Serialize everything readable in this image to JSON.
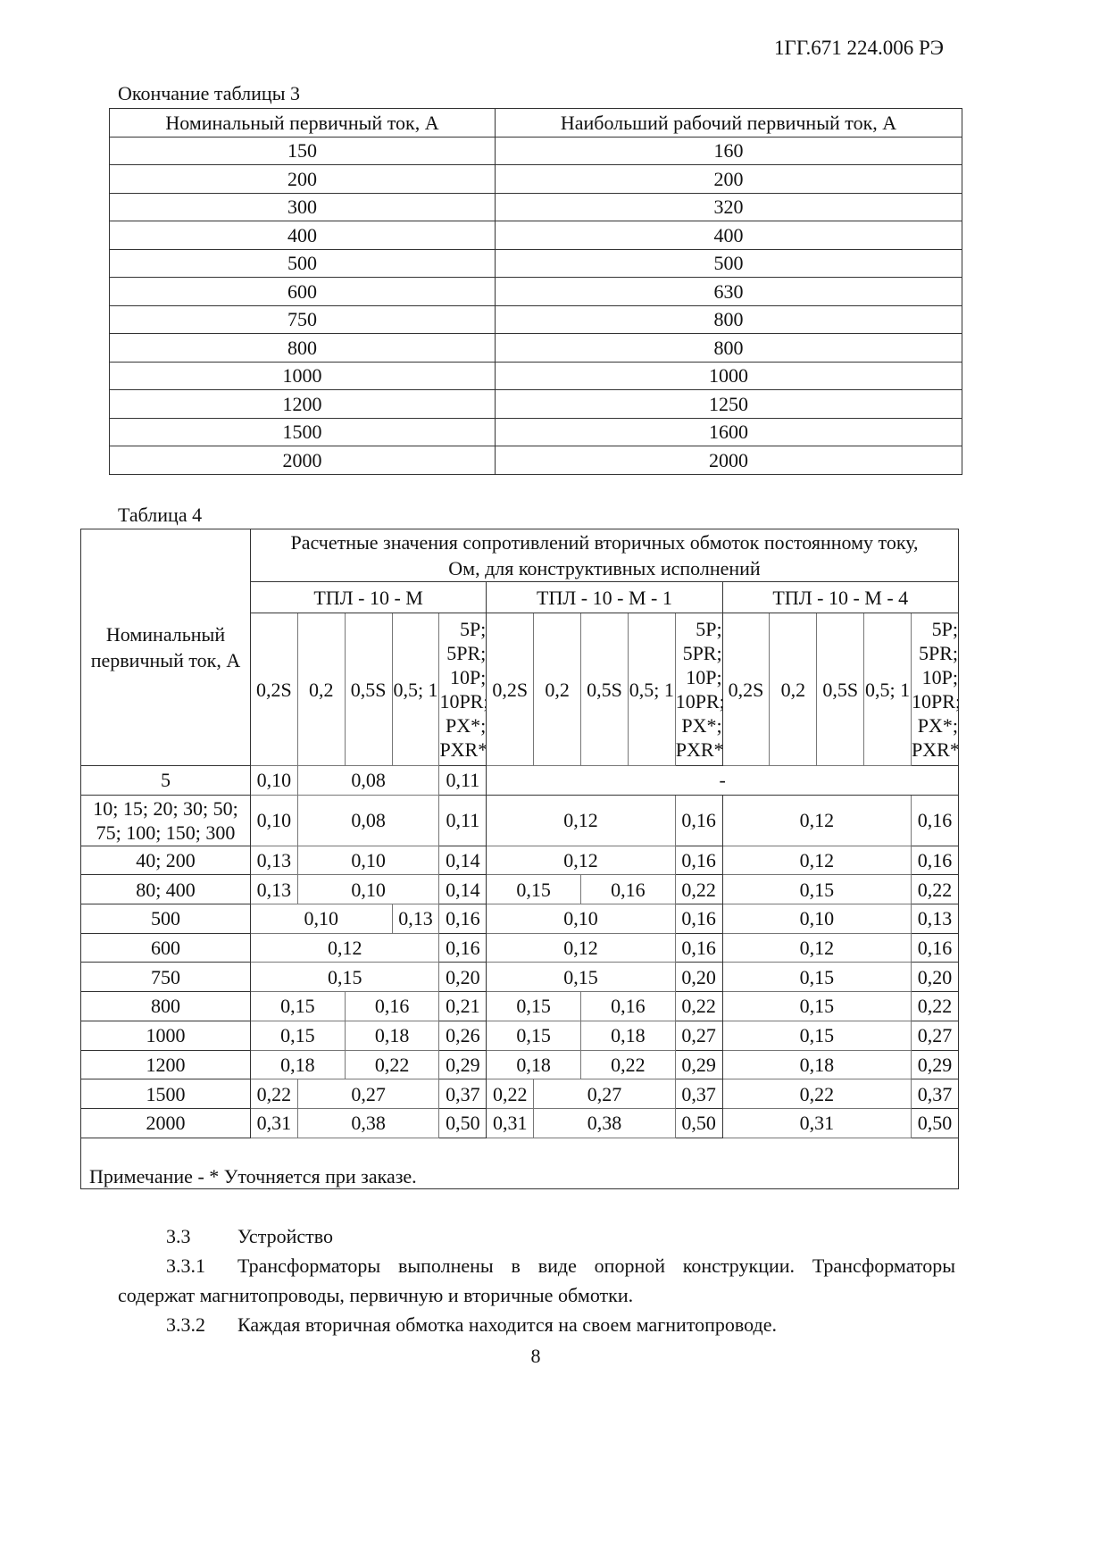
{
  "header": {
    "doc_code": "1ГГ.671 224.006 РЭ"
  },
  "table3": {
    "caption": "Окончание таблицы 3",
    "columns": [
      "Номинальный первичный ток, А",
      "Наибольший рабочий первичный ток, А"
    ],
    "rows": [
      [
        "150",
        "160"
      ],
      [
        "200",
        "200"
      ],
      [
        "300",
        "320"
      ],
      [
        "400",
        "400"
      ],
      [
        "500",
        "500"
      ],
      [
        "600",
        "630"
      ],
      [
        "750",
        "800"
      ],
      [
        "800",
        "800"
      ],
      [
        "1000",
        "1000"
      ],
      [
        "1200",
        "1250"
      ],
      [
        "1500",
        "1600"
      ],
      [
        "2000",
        "2000"
      ]
    ]
  },
  "table4": {
    "caption": "Таблица 4",
    "row_header": "Номинальный первичный ток, А",
    "group_header": "Расчетные значения сопротивлений вторичных обмоток постоянному току, Ом, для конструктивных исполнений",
    "variants": [
      "ТПЛ - 10 - М",
      "ТПЛ - 10 - М - 1",
      "ТПЛ - 10 - М - 4"
    ],
    "classes": [
      "0,2S",
      "0,2",
      "0,5S",
      "0,5; 1",
      "5P; 5PR; 10P; 10PR; PX*; PXR*"
    ],
    "rows": [
      {
        "label": "5",
        "cells": [
          [
            "0,10",
            1
          ],
          [
            "0,08",
            3
          ],
          [
            "0,11",
            1
          ],
          [
            "-",
            10
          ]
        ]
      },
      {
        "label": "10; 15; 20; 30; 50; 75; 100; 150; 300",
        "cells": [
          [
            "0,10",
            1
          ],
          [
            "0,08",
            3
          ],
          [
            "0,11",
            1
          ],
          [
            "0,12",
            4
          ],
          [
            "0,16",
            1
          ],
          [
            "0,12",
            4
          ],
          [
            "0,16",
            1
          ]
        ]
      },
      {
        "label": "40; 200",
        "cells": [
          [
            "0,13",
            1
          ],
          [
            "0,10",
            3
          ],
          [
            "0,14",
            1
          ],
          [
            "0,12",
            4
          ],
          [
            "0,16",
            1
          ],
          [
            "0,12",
            4
          ],
          [
            "0,16",
            1
          ]
        ]
      },
      {
        "label": "80; 400",
        "cells": [
          [
            "0,13",
            1
          ],
          [
            "0,10",
            3
          ],
          [
            "0,14",
            1
          ],
          [
            "0,15",
            2
          ],
          [
            "0,16",
            2
          ],
          [
            "0,22",
            1
          ],
          [
            "0,15",
            4
          ],
          [
            "0,22",
            1
          ]
        ]
      },
      {
        "label": "500",
        "cells": [
          [
            "0,10",
            3
          ],
          [
            "0,13",
            1
          ],
          [
            "0,16",
            1
          ],
          [
            "0,10",
            4
          ],
          [
            "0,16",
            1
          ],
          [
            "0,10",
            4
          ],
          [
            "0,13",
            1
          ]
        ]
      },
      {
        "label": "600",
        "cells": [
          [
            "0,12",
            4
          ],
          [
            "0,16",
            1
          ],
          [
            "0,12",
            4
          ],
          [
            "0,16",
            1
          ],
          [
            "0,12",
            4
          ],
          [
            "0,16",
            1
          ]
        ]
      },
      {
        "label": "750",
        "cells": [
          [
            "0,15",
            4
          ],
          [
            "0,20",
            1
          ],
          [
            "0,15",
            4
          ],
          [
            "0,20",
            1
          ],
          [
            "0,15",
            4
          ],
          [
            "0,20",
            1
          ]
        ]
      },
      {
        "label": "800",
        "cells": [
          [
            "0,15",
            2
          ],
          [
            "0,16",
            2
          ],
          [
            "0,21",
            1
          ],
          [
            "0,15",
            2
          ],
          [
            "0,16",
            2
          ],
          [
            "0,22",
            1
          ],
          [
            "0,15",
            4
          ],
          [
            "0,22",
            1
          ]
        ]
      },
      {
        "label": "1000",
        "cells": [
          [
            "0,15",
            2
          ],
          [
            "0,18",
            2
          ],
          [
            "0,26",
            1
          ],
          [
            "0,15",
            2
          ],
          [
            "0,18",
            2
          ],
          [
            "0,27",
            1
          ],
          [
            "0,15",
            4
          ],
          [
            "0,27",
            1
          ]
        ]
      },
      {
        "label": "1200",
        "cells": [
          [
            "0,18",
            2
          ],
          [
            "0,22",
            2
          ],
          [
            "0,29",
            1
          ],
          [
            "0,18",
            2
          ],
          [
            "0,22",
            2
          ],
          [
            "0,29",
            1
          ],
          [
            "0,18",
            4
          ],
          [
            "0,29",
            1
          ]
        ]
      },
      {
        "label": "1500",
        "cells": [
          [
            "0,22",
            1
          ],
          [
            "0,27",
            3
          ],
          [
            "0,37",
            1
          ],
          [
            "0,22",
            1
          ],
          [
            "0,27",
            3
          ],
          [
            "0,37",
            1
          ],
          [
            "0,22",
            4
          ],
          [
            "0,37",
            1
          ]
        ]
      },
      {
        "label": "2000",
        "cells": [
          [
            "0,31",
            1
          ],
          [
            "0,38",
            3
          ],
          [
            "0,50",
            1
          ],
          [
            "0,31",
            1
          ],
          [
            "0,38",
            3
          ],
          [
            "0,50",
            1
          ],
          [
            "0,31",
            4
          ],
          [
            "0,50",
            1
          ]
        ]
      }
    ],
    "note": "Примечание - * Уточняется при заказе."
  },
  "section": {
    "s33_num": "3.3",
    "s33_title": "Устройство",
    "s331_num": "3.3.1",
    "s331_text": "Трансформаторы выполнены в виде опорной конструкции. Трансформаторы содержат магнитопроводы, первичную и вторичные обмотки.",
    "s332_num": "3.3.2",
    "s332_text": "Каждая вторичная обмотка находится на своем магнитопроводе."
  },
  "footer": {
    "page_number": "8"
  }
}
